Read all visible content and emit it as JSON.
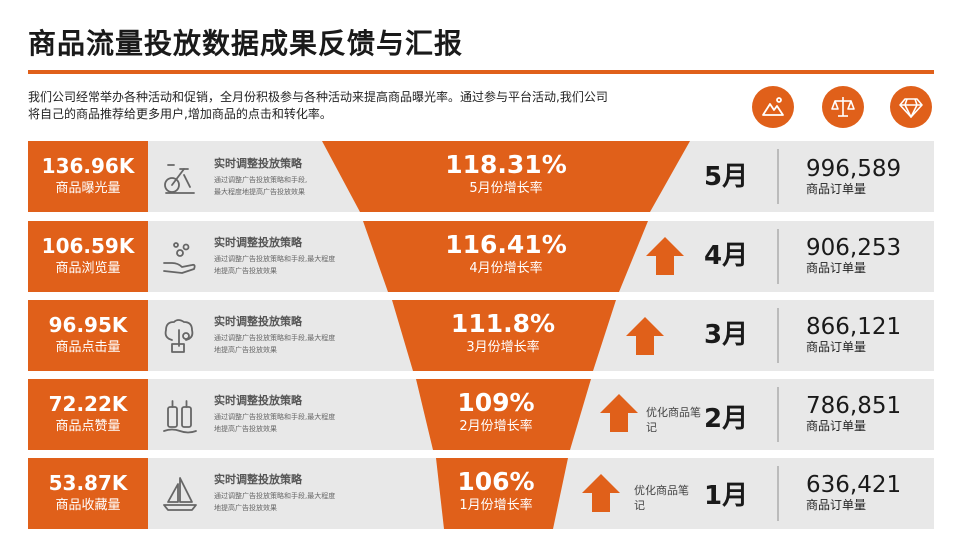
{
  "page": {
    "title": "商品流量投放数据成果反馈与汇报",
    "intro": "我们公司经常举办各种活动和促销，全月份积极参与各种活动来提高商品曝光率。通过参与平台活动,我们公司将自己的商品推荐给更多用户,增加商品的点击和转化率。"
  },
  "colors": {
    "accent": "#e0601a",
    "row_bg": "#e8e8e8",
    "text": "#1a1a1a"
  },
  "header_icons": [
    "mountain-photo-icon",
    "balance-scale-icon",
    "diamond-icon"
  ],
  "rows": [
    {
      "metric_value": "136.96K",
      "metric_label": "商品曝光量",
      "icon": "exercise-bike-icon",
      "strategy_title": "实时调整投放策略",
      "strategy_line1": "通过调整广告投放策略和手段,",
      "strategy_line2": "最大程度地提高广告投放效果",
      "rate_value": "118.31%",
      "rate_label": "5月份增长率",
      "arrow_note": "",
      "month": "5月",
      "orders_value": "996,589",
      "orders_label": "商品订单量"
    },
    {
      "metric_value": "106.59K",
      "metric_label": "商品浏览量",
      "icon": "hand-coins-icon",
      "strategy_title": "实时调整投放策略",
      "strategy_line1": "通过调整广告投放策略和手段,最大程度",
      "strategy_line2": "地提高广告投放效果",
      "rate_value": "116.41%",
      "rate_label": "4月份增长率",
      "arrow_note": "",
      "month": "4月",
      "orders_value": "906,253",
      "orders_label": "商品订单量"
    },
    {
      "metric_value": "96.95K",
      "metric_label": "商品点击量",
      "icon": "tree-cart-icon",
      "strategy_title": "实时调整投放策略",
      "strategy_line1": "通过调整广告投放策略和手段,最大程度",
      "strategy_line2": "地提高广告投放效果",
      "rate_value": "111.8%",
      "rate_label": "3月份增长率",
      "arrow_note": "",
      "month": "3月",
      "orders_value": "866,121",
      "orders_label": "商品订单量"
    },
    {
      "metric_value": "72.22K",
      "metric_label": "商品点赞量",
      "icon": "bottles-icon",
      "strategy_title": "实时调整投放策略",
      "strategy_line1": "通过调整广告投放策略和手段,最大程度",
      "strategy_line2": "地提高广告投放效果",
      "rate_value": "109%",
      "rate_label": "2月份增长率",
      "arrow_note": "优化商品笔记",
      "month": "2月",
      "orders_value": "786,851",
      "orders_label": "商品订单量"
    },
    {
      "metric_value": "53.87K",
      "metric_label": "商品收藏量",
      "icon": "sailboat-icon",
      "strategy_title": "实时调整投放策略",
      "strategy_line1": "通过调整广告投放策略和手段,最大程度",
      "strategy_line2": "地提高广告投放效果",
      "rate_value": "106%",
      "rate_label": "1月份增长率",
      "arrow_note": "优化商品笔记",
      "month": "1月",
      "orders_value": "636,421",
      "orders_label": "商品订单量"
    }
  ]
}
